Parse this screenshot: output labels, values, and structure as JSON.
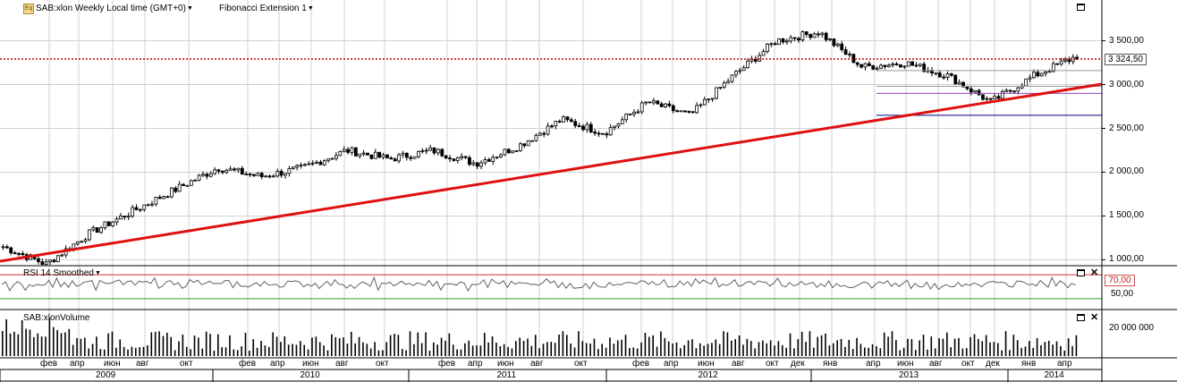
{
  "price_panel": {
    "icon": "Eq",
    "symbol_label": "SAB:xlon Weekly Local time (GMT+0)",
    "study_label": "Fibonacci Extension 1",
    "last_price": "3 324,50",
    "y_axis_ticks": [
      "3 500,00",
      "3 000,00",
      "2 500,00",
      "2 000,00",
      "1 500,00",
      "1 000,00"
    ]
  },
  "rsi_panel": {
    "label": "RSI 14 Smoothed",
    "level_tag": "70,00",
    "y_axis_ticks": [
      "50,00"
    ]
  },
  "volume_panel": {
    "label": "SAB:xlonVolume",
    "y_axis_ticks": [
      "20 000 000"
    ]
  },
  "time_axis": {
    "months": [
      {
        "label": "фев"
      },
      {
        "label": "апр"
      },
      {
        "label": "июн"
      },
      {
        "label": "авг"
      },
      {
        "label": "окт"
      },
      {
        "label": "фев"
      },
      {
        "label": "апр"
      },
      {
        "label": "июн"
      },
      {
        "label": "авг"
      },
      {
        "label": "окт"
      },
      {
        "label": "фев"
      },
      {
        "label": "апр"
      },
      {
        "label": "июн"
      },
      {
        "label": "авг"
      },
      {
        "label": "окт"
      },
      {
        "label": "фев"
      },
      {
        "label": "апр"
      },
      {
        "label": "июн"
      },
      {
        "label": "авг"
      },
      {
        "label": "окт"
      },
      {
        "label": "дек"
      },
      {
        "label": "янв"
      },
      {
        "label": "апр"
      },
      {
        "label": "июн"
      },
      {
        "label": "авг"
      },
      {
        "label": "окт"
      },
      {
        "label": "дек"
      },
      {
        "label": "янв"
      },
      {
        "label": "апр"
      }
    ],
    "years": [
      "2009",
      "2010",
      "2011",
      "2012",
      "2013",
      "2014"
    ]
  },
  "chart_data": {
    "type": "candlestick",
    "interval": "weekly",
    "ylim": [
      800,
      3700
    ],
    "grid": true,
    "series_keypoints": {
      "dates": [
        "2009-01",
        "2009-03",
        "2009-06",
        "2009-09",
        "2009-12",
        "2010-03",
        "2010-06",
        "2010-09",
        "2010-12",
        "2011-03",
        "2011-06",
        "2011-09",
        "2011-12",
        "2012-03",
        "2012-06",
        "2012-09",
        "2012-12",
        "2013-01",
        "2013-03",
        "2013-05",
        "2013-06",
        "2013-09",
        "2013-11",
        "2014-01",
        "2014-03",
        "2014-04"
      ],
      "close": [
        1150,
        950,
        1300,
        1550,
        1800,
        2050,
        1950,
        2050,
        2250,
        2150,
        2250,
        2100,
        2300,
        2600,
        2450,
        2800,
        2650,
        3100,
        3500,
        3600,
        3200,
        3250,
        3100,
        2800,
        3100,
        3324.5
      ]
    },
    "annotations": {
      "trendline": {
        "from": {
          "date": "2009-01",
          "value": 800
        },
        "to": {
          "date": "2014-04",
          "value": 3000
        },
        "color": "#e01010"
      },
      "last_price_line": {
        "value": 3324.5,
        "color": "#c00000"
      },
      "fibonacci_levels": [
        3160,
        2980,
        2900,
        2650
      ]
    }
  },
  "rsi_data": {
    "overbought_level": 70,
    "oversold_level": 30
  }
}
